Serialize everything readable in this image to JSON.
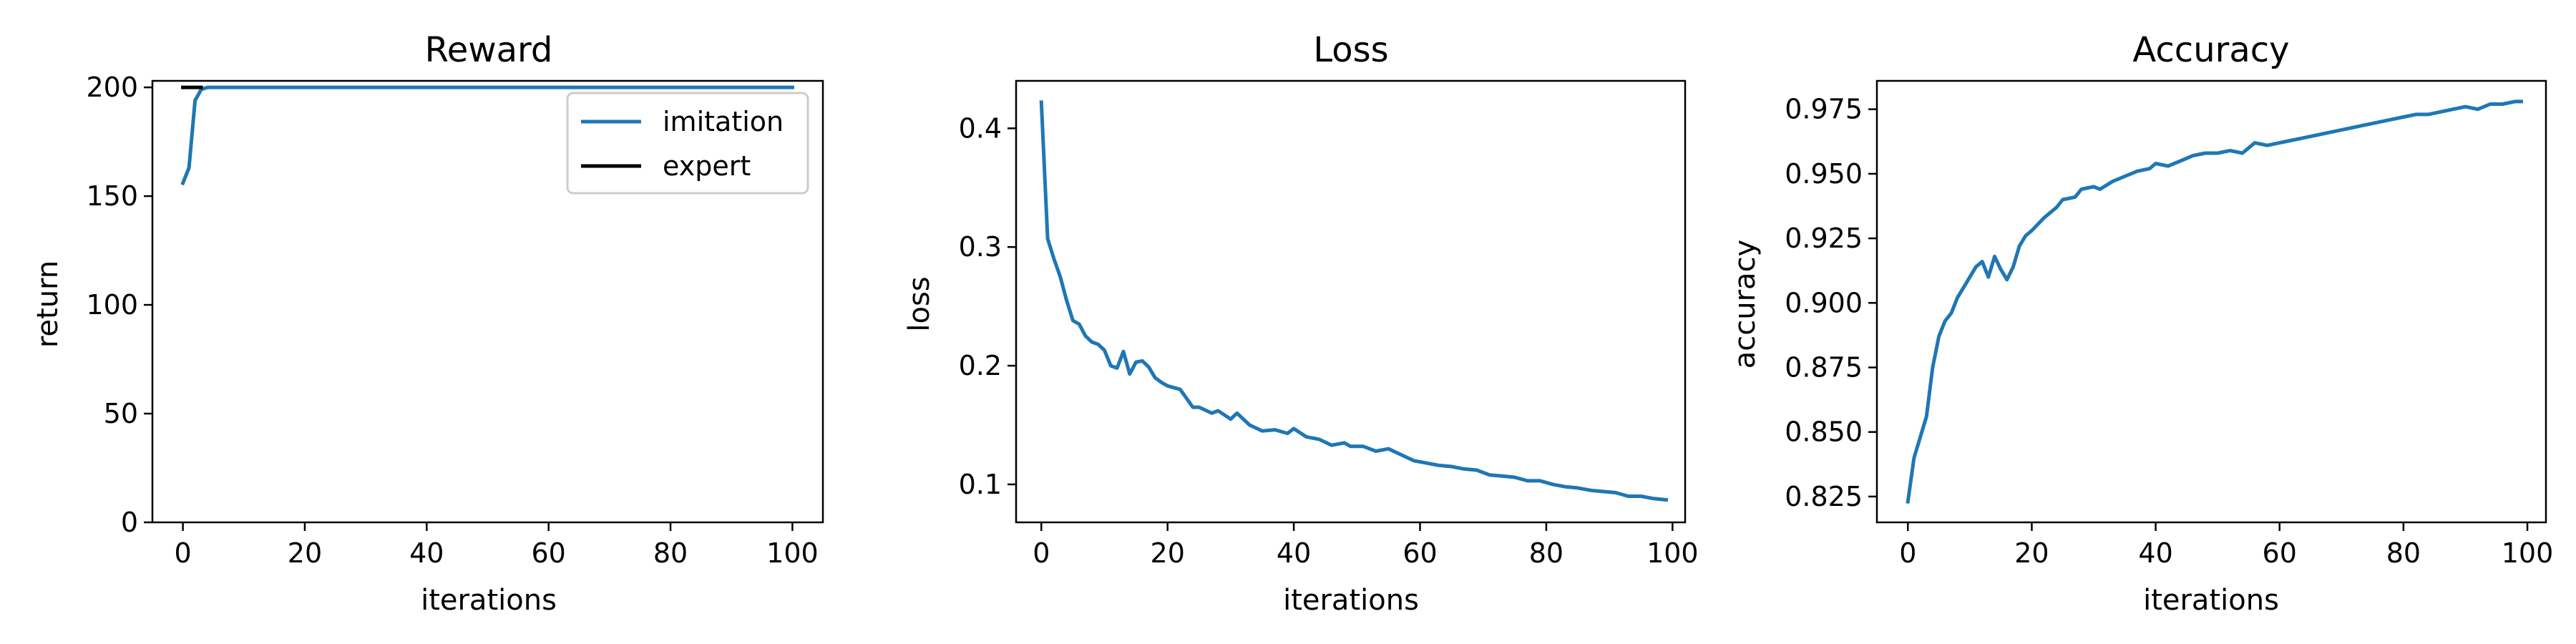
{
  "colors": {
    "imitation": "#1f77b4",
    "expert": "#000000",
    "axis": "#000000",
    "background": "#ffffff"
  },
  "chart_data": [
    {
      "type": "line",
      "title": "Reward",
      "xlabel": "iterations",
      "ylabel": "return",
      "xlim": [
        -5,
        105
      ],
      "ylim": [
        0,
        203
      ],
      "xticks": [
        0,
        20,
        40,
        60,
        80,
        100
      ],
      "yticks": [
        0,
        50,
        100,
        150,
        200
      ],
      "xtick_labels": [
        "0",
        "20",
        "40",
        "60",
        "80",
        "100"
      ],
      "ytick_labels": [
        "0",
        "50",
        "100",
        "150",
        "200"
      ],
      "legend": {
        "placement": "top-right",
        "entries": [
          "imitation",
          "expert"
        ]
      },
      "grid": false,
      "series": [
        {
          "name": "imitation",
          "color": "#1f77b4",
          "x": [
            0,
            1,
            2,
            3,
            4,
            5,
            6,
            7,
            8,
            9,
            10,
            20,
            30,
            40,
            50,
            60,
            70,
            80,
            90,
            100
          ],
          "y": [
            156,
            163,
            194,
            199,
            200,
            200,
            200,
            200,
            200,
            200,
            200,
            200,
            200,
            200,
            200,
            200,
            200,
            200,
            200,
            200
          ]
        },
        {
          "name": "expert",
          "color": "#000000",
          "x": [
            0,
            3
          ],
          "y": [
            200,
            200
          ]
        }
      ]
    },
    {
      "type": "line",
      "title": "Loss",
      "xlabel": "iterations",
      "ylabel": "loss",
      "xlim": [
        -4,
        102
      ],
      "ylim": [
        0.068,
        0.44
      ],
      "xticks": [
        0,
        20,
        40,
        60,
        80,
        100
      ],
      "yticks": [
        0.1,
        0.2,
        0.3,
        0.4
      ],
      "xtick_labels": [
        "0",
        "20",
        "40",
        "60",
        "80",
        "100"
      ],
      "ytick_labels": [
        "0.1",
        "0.2",
        "0.3",
        "0.4"
      ],
      "grid": false,
      "series": [
        {
          "color": "#1f77b4",
          "x": [
            0,
            1,
            2,
            3,
            4,
            5,
            6,
            7,
            8,
            9,
            10,
            11,
            12,
            13,
            14,
            15,
            16,
            17,
            18,
            19,
            20,
            22,
            24,
            25,
            27,
            28,
            30,
            31,
            33,
            35,
            37,
            39,
            40,
            42,
            44,
            46,
            48,
            49,
            51,
            53,
            55,
            57,
            59,
            61,
            63,
            65,
            67,
            69,
            71,
            73,
            75,
            77,
            79,
            81,
            83,
            85,
            87,
            89,
            91,
            93,
            95,
            97,
            99
          ],
          "y": [
            0.422,
            0.307,
            0.29,
            0.275,
            0.255,
            0.238,
            0.235,
            0.225,
            0.22,
            0.218,
            0.213,
            0.2,
            0.198,
            0.212,
            0.193,
            0.203,
            0.204,
            0.199,
            0.19,
            0.186,
            0.183,
            0.18,
            0.165,
            0.165,
            0.16,
            0.162,
            0.155,
            0.16,
            0.15,
            0.145,
            0.146,
            0.143,
            0.147,
            0.14,
            0.138,
            0.133,
            0.135,
            0.132,
            0.132,
            0.128,
            0.13,
            0.125,
            0.12,
            0.118,
            0.116,
            0.115,
            0.113,
            0.112,
            0.108,
            0.107,
            0.106,
            0.103,
            0.103,
            0.1,
            0.098,
            0.097,
            0.095,
            0.094,
            0.093,
            0.09,
            0.09,
            0.088,
            0.087
          ]
        }
      ]
    },
    {
      "type": "line",
      "title": "Accuracy",
      "xlabel": "iterations",
      "ylabel": "accuracy",
      "xlim": [
        -5,
        103
      ],
      "ylim": [
        0.815,
        0.986
      ],
      "xticks": [
        0,
        20,
        40,
        60,
        80,
        100
      ],
      "yticks": [
        0.825,
        0.85,
        0.875,
        0.9,
        0.925,
        0.95,
        0.975
      ],
      "xtick_labels": [
        "0",
        "20",
        "40",
        "60",
        "80",
        "100"
      ],
      "ytick_labels": [
        "0.825",
        "0.850",
        "0.875",
        "0.900",
        "0.925",
        "0.950",
        "0.975"
      ],
      "grid": false,
      "series": [
        {
          "color": "#1f77b4",
          "x": [
            0,
            1,
            2,
            3,
            4,
            5,
            6,
            7,
            8,
            9,
            10,
            11,
            12,
            13,
            14,
            15,
            16,
            17,
            18,
            19,
            20,
            22,
            24,
            25,
            27,
            28,
            30,
            31,
            33,
            35,
            37,
            39,
            40,
            42,
            44,
            46,
            48,
            50,
            52,
            54,
            56,
            58,
            60,
            62,
            64,
            66,
            68,
            70,
            72,
            74,
            76,
            78,
            80,
            82,
            84,
            86,
            88,
            90,
            92,
            94,
            96,
            98,
            99
          ],
          "y": [
            0.823,
            0.84,
            0.848,
            0.856,
            0.875,
            0.887,
            0.893,
            0.896,
            0.902,
            0.906,
            0.91,
            0.914,
            0.916,
            0.91,
            0.918,
            0.913,
            0.909,
            0.914,
            0.922,
            0.926,
            0.928,
            0.933,
            0.937,
            0.94,
            0.941,
            0.944,
            0.945,
            0.944,
            0.947,
            0.949,
            0.951,
            0.952,
            0.954,
            0.953,
            0.955,
            0.957,
            0.958,
            0.958,
            0.959,
            0.958,
            0.962,
            0.961,
            0.962,
            0.963,
            0.964,
            0.965,
            0.966,
            0.967,
            0.968,
            0.969,
            0.97,
            0.971,
            0.972,
            0.973,
            0.973,
            0.974,
            0.975,
            0.976,
            0.975,
            0.977,
            0.977,
            0.978,
            0.978
          ]
        }
      ]
    }
  ]
}
